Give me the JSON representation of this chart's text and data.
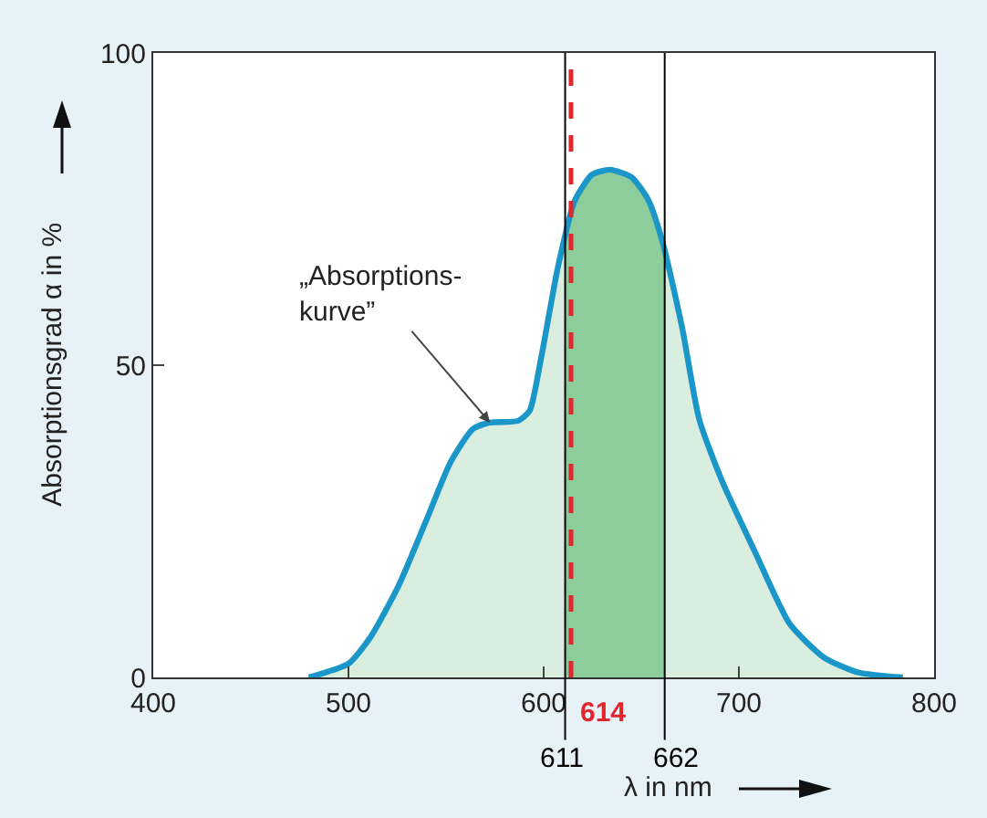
{
  "chart_data": {
    "type": "area",
    "xlabel": "λ in nm",
    "ylabel": "Absorptionsgrad α in %",
    "series": [
      {
        "color": "#1a96c8",
        "x": [
          479.7,
          500,
          511.6,
          526,
          540.6,
          552.2,
          563.8,
          572.5,
          587,
          592.8,
          598.6,
          607.3,
          616,
          624.7,
          634,
          645,
          653.7,
          661,
          671,
          679.7,
          691.3,
          708.7,
          726,
          743.5,
          761,
          784
        ],
        "values": [
          0,
          2.2,
          6.6,
          14.9,
          25.7,
          34.4,
          39.8,
          40.8,
          41.1,
          42.7,
          51,
          65.7,
          76.4,
          80.5,
          81.3,
          80.1,
          76.4,
          69.6,
          55.9,
          41.3,
          31.5,
          19.8,
          8.6,
          3.2,
          0.8,
          0
        ]
      }
    ],
    "xlim": [
      400,
      800
    ],
    "xticks": [
      400,
      500,
      600,
      700,
      800
    ],
    "ylim": [
      0,
      100
    ],
    "yticks": [
      0,
      50,
      100
    ],
    "grid": false,
    "marker": "none",
    "line_style": "solid",
    "bands": [
      {
        "axis": "x",
        "from": 611,
        "to": 662,
        "color": "#8dcc9b"
      }
    ],
    "ref_lines": [
      {
        "axis": "x",
        "value": 611,
        "label": "611",
        "color": "#000000",
        "line_style": "solid"
      },
      {
        "axis": "x",
        "value": 662,
        "label": "662",
        "color": "#000000",
        "line_style": "solid"
      },
      {
        "axis": "x",
        "value": 614,
        "label": "614",
        "color": "#e3262b",
        "line_style": "dashed"
      }
    ],
    "annotations": [
      {
        "text": "„Absorptions-\nkurve”",
        "x": 572.5,
        "y": 40.8
      }
    ]
  }
}
